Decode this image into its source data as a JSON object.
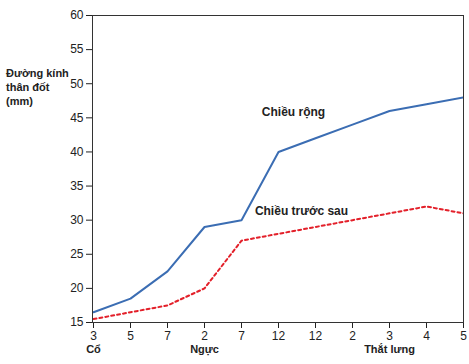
{
  "chart_data": {
    "type": "line",
    "y_label": "Đường kính thân đốt (mm)",
    "categories": [
      "3",
      "5",
      "7",
      "2",
      "7",
      "12",
      "12",
      "2",
      "3",
      "4",
      "5"
    ],
    "groups": [
      {
        "label": "Cổ",
        "category_index": 0
      },
      {
        "label": "Ngực",
        "category_index": 3
      },
      {
        "label": "Thắt lưng",
        "category_index": 8
      }
    ],
    "series": [
      {
        "name": "Chiều rộng",
        "color": "#3b6db3",
        "line_style": "solid",
        "values": [
          16.5,
          18.5,
          22.5,
          29,
          30,
          40,
          42,
          44,
          46,
          47,
          48
        ]
      },
      {
        "name": "Chiều trước sau",
        "color": "#e3202a",
        "line_style": "dotted",
        "values": [
          15.5,
          16.5,
          17.5,
          20,
          27,
          28,
          29,
          30,
          31,
          32,
          31
        ]
      }
    ],
    "ylim": [
      15,
      60
    ],
    "yticks": [
      15,
      20,
      25,
      30,
      35,
      40,
      45,
      50,
      55,
      60
    ],
    "grid": false
  }
}
